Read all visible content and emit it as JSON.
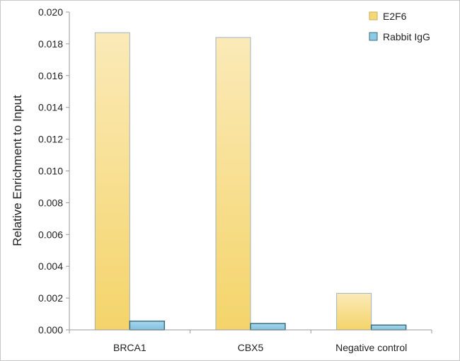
{
  "chart_data": {
    "type": "bar",
    "title": "",
    "xlabel": "",
    "ylabel": "Relative Enrichment to Input",
    "categories": [
      "BRCA1",
      "CBX5",
      "Negative control"
    ],
    "series": [
      {
        "name": "E2F6",
        "values": [
          0.0187,
          0.0184,
          0.0023
        ],
        "color": "#f6d877"
      },
      {
        "name": "Rabbit IgG",
        "values": [
          0.00055,
          0.0004,
          0.0003
        ],
        "color": "#8ec9e6"
      }
    ],
    "ylim": [
      0,
      0.02
    ],
    "yticks": [
      "0.000",
      "0.002",
      "0.004",
      "0.006",
      "0.008",
      "0.010",
      "0.012",
      "0.014",
      "0.016",
      "0.018",
      "0.020"
    ],
    "grid": false,
    "legend": "top-right"
  }
}
